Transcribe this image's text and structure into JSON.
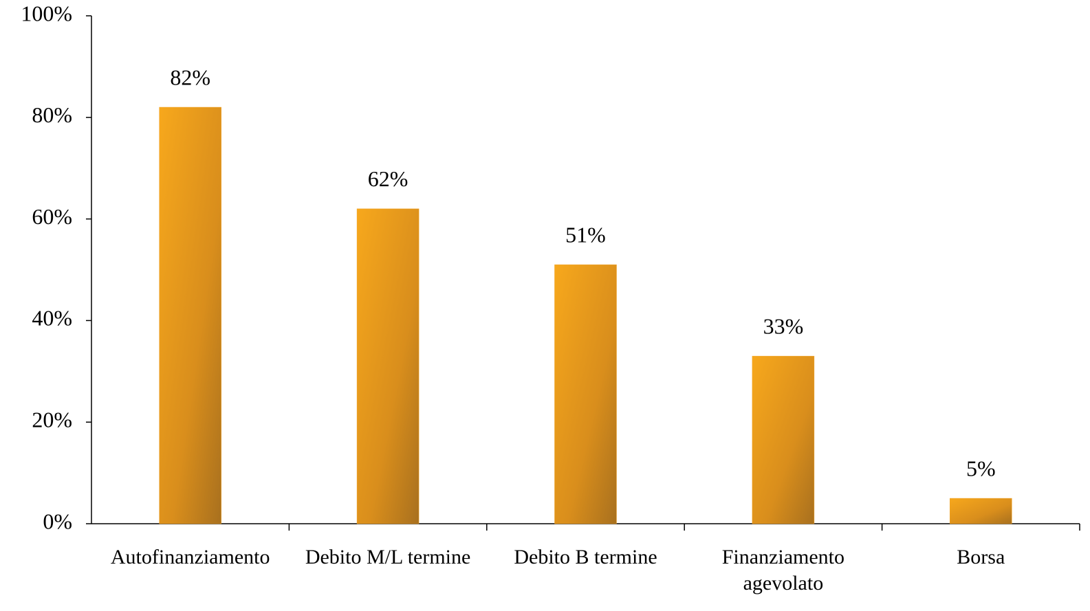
{
  "chart_data": {
    "type": "bar",
    "categories": [
      "Autofinanziamento",
      "Debito M/L termine",
      "Debito B termine",
      "Finanziamento agevolato",
      "Borsa"
    ],
    "values": [
      82,
      62,
      51,
      33,
      5
    ],
    "value_labels": [
      "82%",
      "62%",
      "51%",
      "33%",
      "5%"
    ],
    "color": "#f0a020",
    "ylim": [
      0,
      100
    ],
    "yticks": [
      {
        "value": 0,
        "label": "0%"
      },
      {
        "value": 20,
        "label": "20%"
      },
      {
        "value": 40,
        "label": "40%"
      },
      {
        "value": 60,
        "label": "60%"
      },
      {
        "value": 80,
        "label": "80%"
      },
      {
        "value": 100,
        "label": "100%"
      }
    ],
    "grid": false
  }
}
